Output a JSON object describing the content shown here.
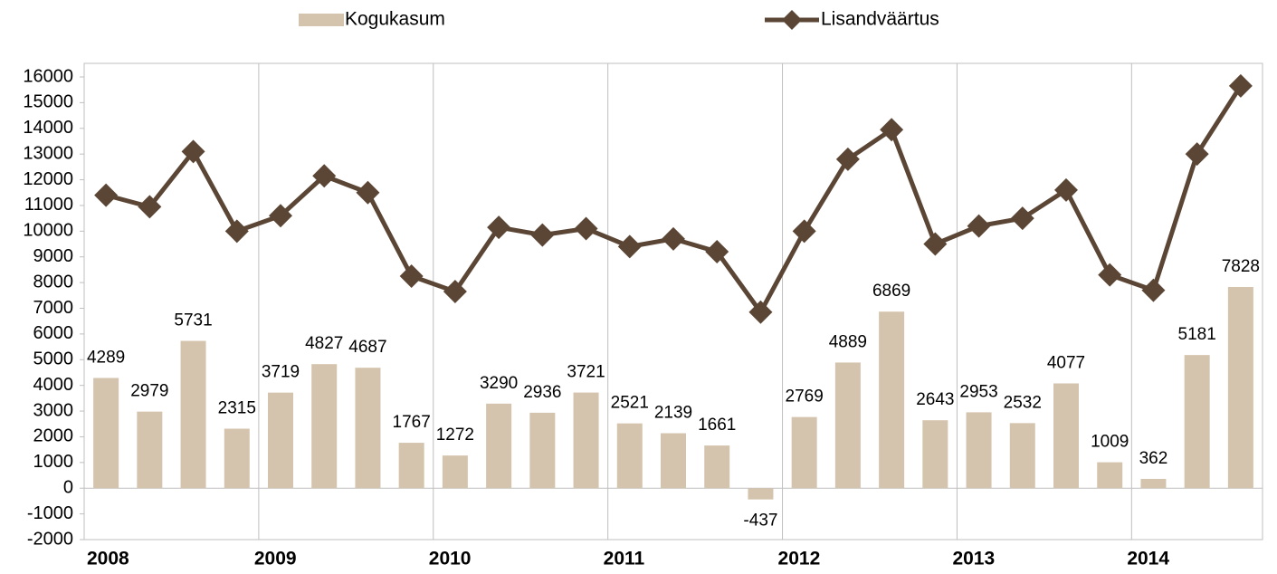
{
  "chart_data": {
    "type": "bar-line",
    "categories": [
      "2008",
      null,
      null,
      null,
      "2009",
      null,
      null,
      null,
      "2010",
      null,
      null,
      null,
      "2011",
      null,
      null,
      null,
      "2012",
      null,
      null,
      null,
      "2013",
      null,
      null,
      null,
      "2014",
      null,
      null
    ],
    "series": [
      {
        "name": "Kogukasum",
        "type": "bar",
        "color": "#d5c4ad",
        "values": [
          4289,
          2979,
          5731,
          2315,
          3719,
          4827,
          4687,
          1767,
          1272,
          3290,
          2936,
          3721,
          2521,
          2139,
          1661,
          -437,
          2769,
          4889,
          6869,
          2643,
          2953,
          2532,
          4077,
          1009,
          362,
          5181,
          7828
        ]
      },
      {
        "name": "Lisandväärtus",
        "type": "line",
        "color": "#5b4636",
        "values": [
          11400,
          10950,
          13100,
          10000,
          10600,
          12150,
          11500,
          8250,
          7650,
          10150,
          9850,
          10100,
          9400,
          9700,
          9200,
          6850,
          10000,
          12800,
          13950,
          9500,
          10200,
          10500,
          11600,
          8300,
          7700,
          13000,
          15650
        ]
      }
    ],
    "ylim": [
      -2000,
      16000
    ],
    "yticks": [
      -2000,
      -1000,
      0,
      1000,
      2000,
      3000,
      4000,
      5000,
      6000,
      7000,
      8000,
      9000,
      10000,
      11000,
      12000,
      13000,
      14000,
      15000,
      16000
    ],
    "legend": "top"
  }
}
